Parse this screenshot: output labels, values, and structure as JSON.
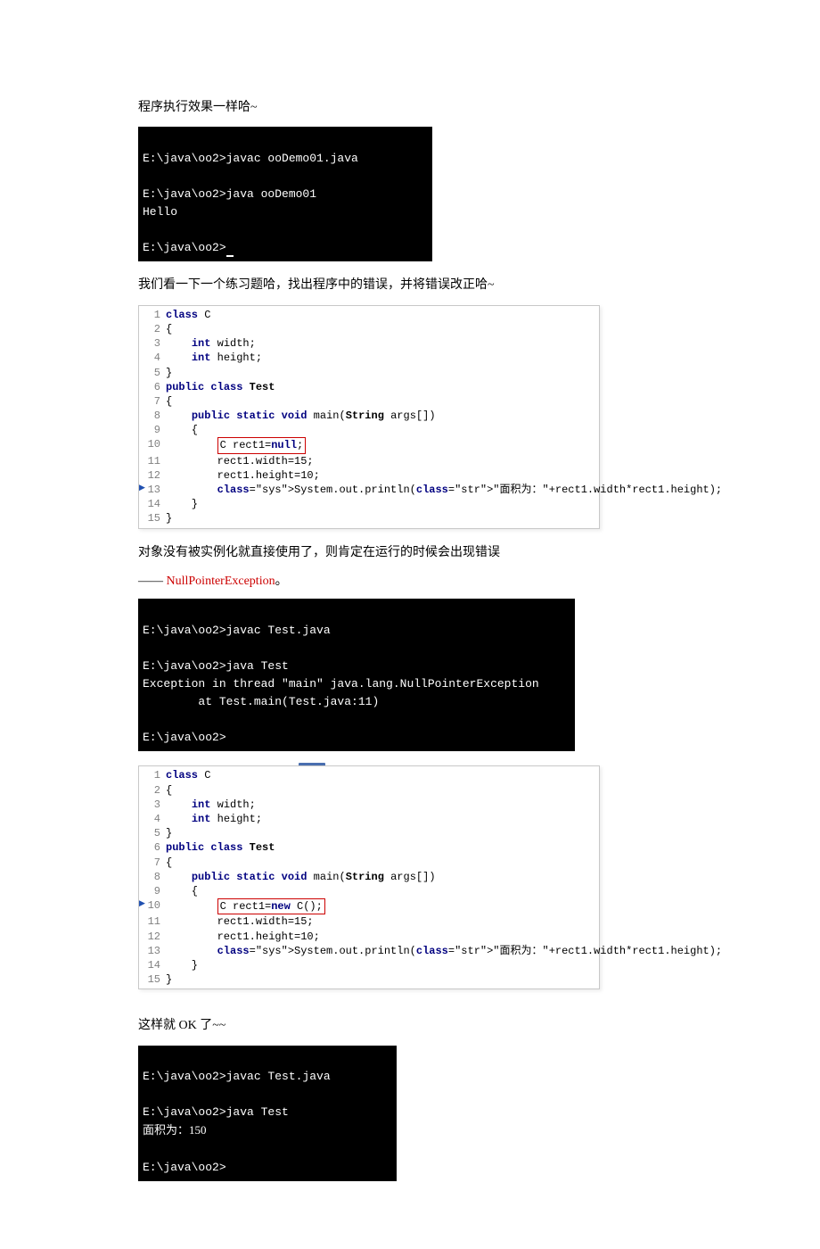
{
  "para1": "程序执行效果一样哈~",
  "term1": {
    "l1": "E:\\java\\oo2>javac ooDemo01.java",
    "l2": "",
    "l3": "E:\\java\\oo2>java ooDemo01",
    "l4": "Hello",
    "l5": "",
    "l6": "E:\\java\\oo2>"
  },
  "para2": "我们看一下一个练习题哈，找出程序中的错误，并将错误改正哈~",
  "code1": {
    "lines": [
      {
        "n": "1",
        "marker": false,
        "boxed": false,
        "content": "class C"
      },
      {
        "n": "2",
        "marker": false,
        "boxed": false,
        "content": "{"
      },
      {
        "n": "3",
        "marker": false,
        "boxed": false,
        "content": "    int width;"
      },
      {
        "n": "4",
        "marker": false,
        "boxed": false,
        "content": "    int height;"
      },
      {
        "n": "5",
        "marker": false,
        "boxed": false,
        "content": "}"
      },
      {
        "n": "6",
        "marker": false,
        "boxed": false,
        "content": "public class Test"
      },
      {
        "n": "7",
        "marker": false,
        "boxed": false,
        "content": "{"
      },
      {
        "n": "8",
        "marker": false,
        "boxed": false,
        "content": "    public static void main(String args[])"
      },
      {
        "n": "9",
        "marker": false,
        "boxed": false,
        "content": "    {"
      },
      {
        "n": "10",
        "marker": false,
        "boxed": true,
        "boxedText": "C rect1=null;",
        "content": ""
      },
      {
        "n": "11",
        "marker": false,
        "boxed": false,
        "content": "        rect1.width=15;"
      },
      {
        "n": "12",
        "marker": false,
        "boxed": false,
        "content": "        rect1.height=10;"
      },
      {
        "n": "13",
        "marker": true,
        "boxed": false,
        "content": "        System.out.println(\"面积为：\"+rect1.width*rect1.height);"
      },
      {
        "n": "14",
        "marker": false,
        "boxed": false,
        "content": "    }"
      },
      {
        "n": "15",
        "marker": false,
        "boxed": false,
        "content": "}"
      }
    ]
  },
  "para3": "对象没有被实例化就直接使用了，则肯定在运行的时候会出现错误",
  "para4_pre": "—— ",
  "para4_red": "NullPointerException",
  "para4_post": "。",
  "term2": {
    "l1": "E:\\java\\oo2>javac Test.java",
    "l2": "",
    "l3": "E:\\java\\oo2>java Test",
    "l4": "Exception in thread \"main\" java.lang.NullPointerException",
    "l5": "        at Test.main(Test.java:11)",
    "l6": "",
    "l7": "E:\\java\\oo2>"
  },
  "code2": {
    "lines": [
      {
        "n": "1",
        "marker": false,
        "boxed": false,
        "content": "class C"
      },
      {
        "n": "2",
        "marker": false,
        "boxed": false,
        "content": "{"
      },
      {
        "n": "3",
        "marker": false,
        "boxed": false,
        "content": "    int width;"
      },
      {
        "n": "4",
        "marker": false,
        "boxed": false,
        "content": "    int height;"
      },
      {
        "n": "5",
        "marker": false,
        "boxed": false,
        "content": "}"
      },
      {
        "n": "6",
        "marker": false,
        "boxed": false,
        "content": "public class Test"
      },
      {
        "n": "7",
        "marker": false,
        "boxed": false,
        "content": "{"
      },
      {
        "n": "8",
        "marker": false,
        "boxed": false,
        "content": "    public static void main(String args[])"
      },
      {
        "n": "9",
        "marker": false,
        "boxed": false,
        "content": "    {"
      },
      {
        "n": "10",
        "marker": true,
        "boxed": true,
        "boxedText": "C rect1=new C();",
        "content": ""
      },
      {
        "n": "11",
        "marker": false,
        "boxed": false,
        "content": "        rect1.width=15;"
      },
      {
        "n": "12",
        "marker": false,
        "boxed": false,
        "content": "        rect1.height=10;"
      },
      {
        "n": "13",
        "marker": false,
        "boxed": false,
        "content": "        System.out.println(\"面积为：\"+rect1.width*rect1.height);"
      },
      {
        "n": "14",
        "marker": false,
        "boxed": false,
        "content": "    }"
      },
      {
        "n": "15",
        "marker": false,
        "boxed": false,
        "content": "}"
      }
    ]
  },
  "para5": "这样就 OK 了~~",
  "term3": {
    "l1": "E:\\java\\oo2>javac Test.java",
    "l2": "",
    "l3": "E:\\java\\oo2>java Test",
    "l4": "面积为：150",
    "l5": "",
    "l6": "E:\\java\\oo2>"
  },
  "colors": {
    "terminal_bg": "#000000",
    "terminal_fg": "#ffffff",
    "keyword": "#000080",
    "string": "#008000",
    "system": "#800000",
    "box_border": "#cc0000",
    "linenum": "#808080"
  }
}
